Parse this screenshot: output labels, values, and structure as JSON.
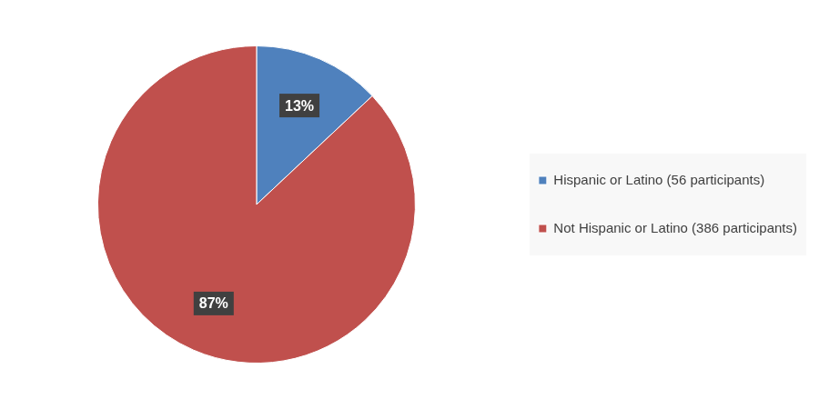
{
  "chart_data": {
    "type": "pie",
    "categories": [
      "Hispanic or Latino (56 participants)",
      "Not Hispanic or Latino (386 participants)"
    ],
    "values": [
      13,
      87
    ],
    "value_labels": [
      "13%",
      "87%"
    ],
    "colors": [
      "#4f81bd",
      "#c0504d"
    ],
    "data_labels": true,
    "legend": "right"
  }
}
